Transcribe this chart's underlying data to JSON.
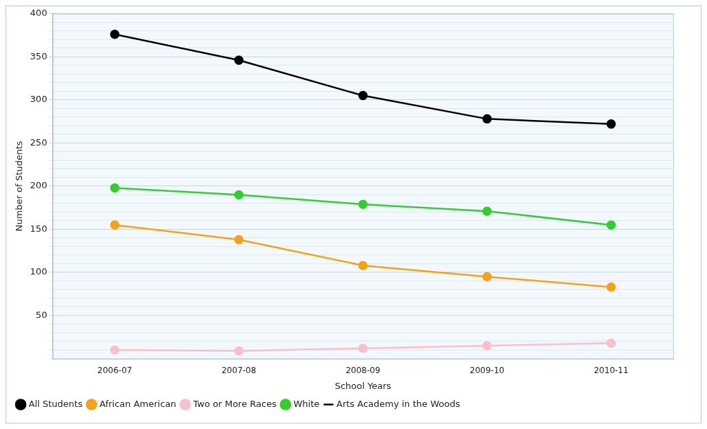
{
  "chart_data": {
    "type": "line",
    "xlabel": "School Years",
    "ylabel": "Number of Students",
    "categories": [
      "2006-07",
      "2007-08",
      "2008-09",
      "2009-10",
      "2010-11"
    ],
    "series": [
      {
        "name": "All Students",
        "color": "#000000",
        "values": [
          376,
          346,
          305,
          278,
          272
        ]
      },
      {
        "name": "African American",
        "color": "#f5a21b",
        "values": [
          155,
          138,
          108,
          95,
          83
        ]
      },
      {
        "name": "Two or More Races",
        "color": "#f9bfcb",
        "values": [
          10,
          9,
          12,
          15,
          18
        ]
      },
      {
        "name": "White",
        "color": "#33cc33",
        "values": [
          198,
          190,
          179,
          171,
          155
        ]
      },
      {
        "name": "Arts Academy in the Woods",
        "color": "#000000",
        "values": [
          null,
          null,
          null,
          null,
          null
        ],
        "marker": "none"
      }
    ],
    "ylim": [
      0,
      400
    ],
    "yticks": [
      {
        "value": 0,
        "label": null
      },
      {
        "value": 10,
        "label": null
      },
      {
        "value": 20,
        "label": null
      },
      {
        "value": 30,
        "label": null
      },
      {
        "value": 40,
        "label": null
      },
      50,
      {
        "value": 60,
        "label": null
      },
      {
        "value": 70,
        "label": null
      },
      {
        "value": 80,
        "label": null
      },
      {
        "value": 90,
        "label": null
      },
      100,
      {
        "value": 110,
        "label": null
      },
      {
        "value": 120,
        "label": null
      },
      {
        "value": 130,
        "label": null
      },
      {
        "value": 140,
        "label": null
      },
      150,
      {
        "value": 160,
        "label": null
      },
      {
        "value": 170,
        "label": null
      },
      {
        "value": 180,
        "label": null
      },
      {
        "value": 190,
        "label": null
      },
      200,
      {
        "value": 210,
        "label": null
      },
      {
        "value": 220,
        "label": null
      },
      {
        "value": 230,
        "label": null
      },
      {
        "value": 240,
        "label": null
      },
      250,
      {
        "value": 260,
        "label": null
      },
      {
        "value": 270,
        "label": null
      },
      {
        "value": 280,
        "label": null
      },
      {
        "value": 290,
        "label": null
      },
      300,
      {
        "value": 310,
        "label": null
      },
      {
        "value": 320,
        "label": null
      },
      {
        "value": 330,
        "label": null
      },
      {
        "value": 340,
        "label": null
      },
      350,
      {
        "value": 360,
        "label": null
      },
      {
        "value": 370,
        "label": null
      },
      {
        "value": 380,
        "label": null
      },
      {
        "value": 390,
        "label": null
      },
      400
    ],
    "grid": "y",
    "legend": "bottom left",
    "marker": "circle",
    "line_style": "solid"
  }
}
